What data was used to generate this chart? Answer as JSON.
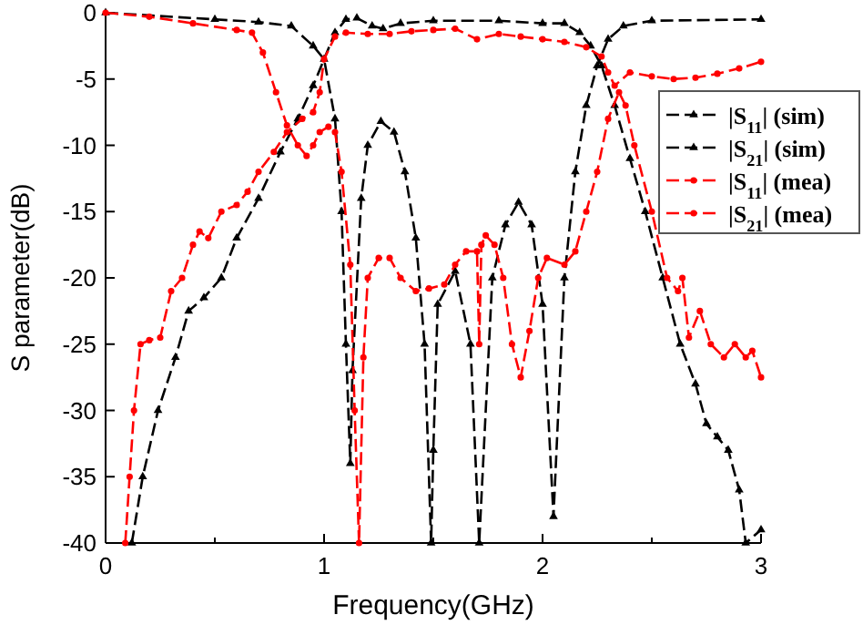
{
  "chart_data": {
    "type": "line",
    "xlabel": "Frequency(GHz)",
    "ylabel": "S parameter(dB)",
    "xlim": [
      0,
      3
    ],
    "xticks": [
      0,
      {
        "value": 0.5,
        "label": null
      },
      1,
      {
        "value": 1.5,
        "label": null
      },
      2,
      {
        "value": 2.5,
        "label": null
      },
      3
    ],
    "ylim": [
      -40,
      0
    ],
    "yticks": [
      -40,
      -35,
      -30,
      -25,
      -20,
      -15,
      -10,
      -5,
      0
    ],
    "legend": "top right",
    "grid": false,
    "series": [
      {
        "name": "|S$_{11}$| (sim)",
        "color": "#000000",
        "marker": "triangle",
        "line_style": "dashed",
        "x": [
          0,
          0.5,
          0.7,
          0.85,
          0.95,
          1.0,
          1.05,
          1.08,
          1.1,
          1.12,
          1.13,
          1.17,
          1.2,
          1.26,
          1.32,
          1.37,
          1.42,
          1.46,
          1.49,
          1.5,
          1.52,
          1.6,
          1.67,
          1.71,
          1.77,
          1.83,
          1.89,
          1.95,
          2.0,
          2.05,
          2.1,
          2.15,
          2.2,
          2.25,
          2.3,
          2.37,
          2.5,
          3.0
        ],
        "values": [
          0,
          -0.5,
          -0.7,
          -1,
          -2.5,
          -3.5,
          -8,
          -15,
          -25,
          -34,
          -27,
          -14,
          -10,
          -8.2,
          -9,
          -12,
          -17,
          -25,
          -40,
          -33,
          -22,
          -19.5,
          -25,
          -40,
          -20,
          -16,
          -14.3,
          -16,
          -22,
          -38,
          -20,
          -12,
          -7,
          -4,
          -2,
          -1,
          -0.6,
          -0.5
        ]
      },
      {
        "name": "|S$_{21}$| (sim)",
        "color": "#000000",
        "marker": "triangle",
        "line_style": "dashed",
        "x": [
          0.12,
          0.17,
          0.24,
          0.32,
          0.38,
          0.45,
          0.53,
          0.6,
          0.7,
          0.8,
          0.88,
          0.95,
          1.05,
          1.1,
          1.15,
          1.22,
          1.27,
          1.35,
          1.5,
          1.8,
          2.0,
          2.1,
          2.17,
          2.22,
          2.27,
          2.33,
          2.4,
          2.47,
          2.55,
          2.63,
          2.7,
          2.75,
          2.8,
          2.85,
          2.9,
          2.93,
          3.0
        ],
        "values": [
          -40,
          -35,
          -30,
          -26,
          -22.5,
          -21.5,
          -20,
          -17,
          -14,
          -10.5,
          -8,
          -5.5,
          -1.5,
          -0.5,
          -0.4,
          -1,
          -1.2,
          -0.8,
          -0.6,
          -0.6,
          -0.8,
          -0.8,
          -1.5,
          -2.5,
          -4,
          -7,
          -11,
          -15,
          -20,
          -25,
          -28,
          -31,
          -32,
          -33,
          -36,
          -40,
          -39
        ]
      },
      {
        "name": "|S$_{11}$| (mea)",
        "color": "#ff0000",
        "marker": "circle",
        "line_style": "dashed",
        "x": [
          0,
          0.2,
          0.4,
          0.6,
          0.67,
          0.72,
          0.78,
          0.83,
          0.88,
          0.92,
          0.95,
          0.98,
          1.02,
          1.05,
          1.08,
          1.12,
          1.14,
          1.16,
          1.18,
          1.2,
          1.25,
          1.3,
          1.35,
          1.42,
          1.48,
          1.55,
          1.6,
          1.65,
          1.7,
          1.71,
          1.72,
          1.74,
          1.78,
          1.82,
          1.86,
          1.9,
          1.94,
          1.98,
          2.02,
          2.1,
          2.15,
          2.2,
          2.25,
          2.3,
          2.35,
          2.38,
          2.42,
          2.5,
          2.57,
          2.62,
          2.64,
          2.67,
          2.72,
          2.77,
          2.83,
          2.88,
          2.93,
          2.96,
          3.0
        ],
        "values": [
          0,
          -0.3,
          -0.8,
          -1.3,
          -1.5,
          -3,
          -6,
          -8.5,
          -10,
          -10.8,
          -10,
          -9,
          -8.6,
          -9,
          -12,
          -19,
          -30,
          -40,
          -26,
          -20,
          -18.5,
          -18.5,
          -20,
          -21,
          -20.8,
          -20.5,
          -19,
          -18,
          -18,
          -25,
          -17.5,
          -16.8,
          -17.5,
          -20,
          -25,
          -27.5,
          -24,
          -20,
          -18.5,
          -19,
          -18,
          -15,
          -12,
          -8,
          -6,
          -7,
          -10,
          -15,
          -20,
          -21,
          -20,
          -24.5,
          -22.5,
          -25,
          -26,
          -25,
          -26,
          -25.5,
          -27.5
        ]
      },
      {
        "name": "|S$_{21}$| (mea)",
        "color": "#ff0000",
        "marker": "circle",
        "line_style": "dashed",
        "x": [
          0.09,
          0.11,
          0.13,
          0.16,
          0.2,
          0.25,
          0.3,
          0.35,
          0.4,
          0.43,
          0.47,
          0.53,
          0.6,
          0.65,
          0.7,
          0.77,
          0.83,
          0.9,
          0.95,
          0.98,
          1.0,
          1.05,
          1.1,
          1.2,
          1.3,
          1.4,
          1.5,
          1.6,
          1.7,
          1.8,
          1.9,
          2.0,
          2.1,
          2.2,
          2.27,
          2.3,
          2.33,
          2.4,
          2.5,
          2.6,
          2.7,
          2.8,
          2.9,
          3.0
        ],
        "values": [
          -40,
          -35,
          -30,
          -25,
          -24.7,
          -24.5,
          -21,
          -20,
          -17.5,
          -16.5,
          -17,
          -15,
          -14.5,
          -13.5,
          -12,
          -10.5,
          -9,
          -8,
          -7.5,
          -6,
          -3.5,
          -1.8,
          -1.5,
          -1.6,
          -1.6,
          -1.4,
          -1.3,
          -1.2,
          -2,
          -1.6,
          -1.8,
          -2,
          -2.2,
          -2.6,
          -3.3,
          -4.5,
          -5.5,
          -4.5,
          -4.8,
          -5,
          -4.9,
          -4.6,
          -4.2,
          -3.7
        ]
      }
    ]
  }
}
